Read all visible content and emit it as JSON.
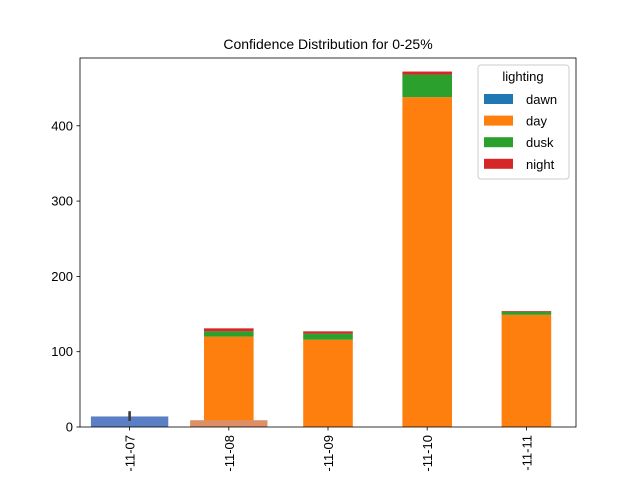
{
  "chart_data": {
    "type": "bar",
    "stacked": true,
    "title": "Confidence Distribution for 0-25%",
    "xlabel": "",
    "ylabel": "",
    "categories": [
      "-11-07",
      "-11-08",
      "-11-09",
      "-11-10",
      "-11-11"
    ],
    "ylim": [
      0,
      490
    ],
    "yticks": [
      0,
      100,
      200,
      300,
      400
    ],
    "grid": false,
    "legend": {
      "title": "lighting",
      "placement": "top-right"
    },
    "series": [
      {
        "name": "dawn",
        "color": "#1f77b4",
        "values": [
          0,
          0,
          0,
          0,
          0
        ]
      },
      {
        "name": "day",
        "color": "#ff7f0e",
        "values": [
          0,
          120,
          116,
          438,
          149
        ]
      },
      {
        "name": "dusk",
        "color": "#2ca02c",
        "values": [
          0,
          7,
          8,
          30,
          4
        ]
      },
      {
        "name": "night",
        "color": "#d62728",
        "values": [
          0,
          4,
          3,
          4,
          1
        ]
      }
    ],
    "overlay_bars": [
      {
        "category": "-11-07",
        "value": 14,
        "color": "#5a7fc4",
        "error": [
          8,
          21
        ]
      },
      {
        "category": "-11-08",
        "value": 9,
        "color": "#dd9066"
      }
    ]
  }
}
